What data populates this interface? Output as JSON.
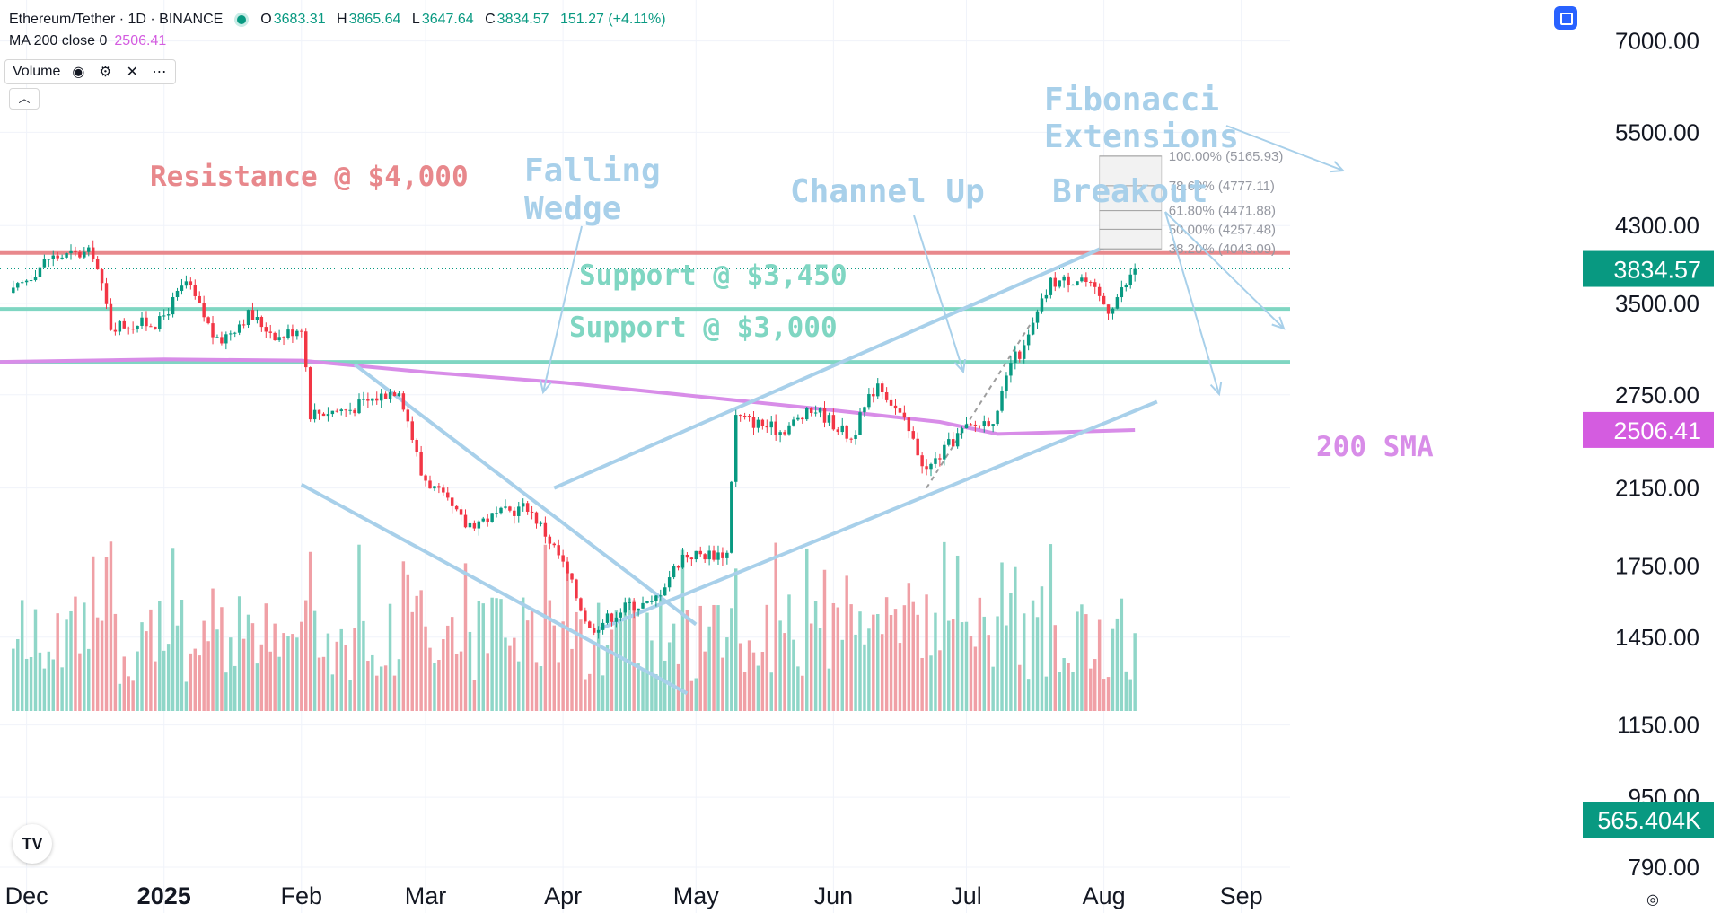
{
  "header": {
    "symbol": "Ethereum/Tether · 1D · BINANCE",
    "ohlc": {
      "o_label": "O",
      "o": "3683.31",
      "h_label": "H",
      "h": "3865.64",
      "l_label": "L",
      "l": "3647.64",
      "c_label": "C",
      "c": "3834.57",
      "change": "151.27 (+4.11%)"
    },
    "ma_label": "MA 200 close 0",
    "ma_value": "2506.41",
    "volume_label": "Volume",
    "icons": [
      "eye-icon",
      "gear-icon",
      "close-icon",
      "more-icon"
    ]
  },
  "colors": {
    "up": "#089981",
    "down": "#f23645",
    "vol_up": "#8fd6c8",
    "vol_down": "#f0a0a6",
    "resistance": "#e8888c",
    "support": "#7fd6c2",
    "trend": "#a8d0ea",
    "sma": "#d88de8",
    "annotation": "#a8d0ea",
    "fib_text": "#9598a1",
    "price_badge": "#089981",
    "sma_badge": "#d45ce0"
  },
  "chart_data": {
    "type": "candlestick",
    "title": "Ethereum/Tether · 1D · BINANCE",
    "y_scale": "log",
    "ylim": [
      700,
      7800
    ],
    "y_ticks": [
      "7000.00",
      "5500.00",
      "4300.00",
      "3500.00",
      "2750.00",
      "2150.00",
      "1750.00",
      "1450.00",
      "1150.00",
      "950.00",
      "790.00"
    ],
    "x_ticks": [
      "Dec",
      "2025",
      "Feb",
      "Mar",
      "Apr",
      "May",
      "Jun",
      "Jul",
      "Aug",
      "Sep"
    ],
    "x_range": [
      "2024-11-25",
      "2025-09-12"
    ],
    "price_path": [
      [
        "2024-11-28",
        3600
      ],
      [
        "2024-12-06",
        3950
      ],
      [
        "2024-12-16",
        4000
      ],
      [
        "2024-12-20",
        3300
      ],
      [
        "2024-12-31",
        3330
      ],
      [
        "2025-01-06",
        3700
      ],
      [
        "2025-01-13",
        3150
      ],
      [
        "2025-01-20",
        3400
      ],
      [
        "2025-01-27",
        3200
      ],
      [
        "2025-02-01",
        3300
      ],
      [
        "2025-02-03",
        2620
      ],
      [
        "2025-02-12",
        2650
      ],
      [
        "2025-02-23",
        2800
      ],
      [
        "2025-02-28",
        2230
      ],
      [
        "2025-03-10",
        1950
      ],
      [
        "2025-03-24",
        2050
      ],
      [
        "2025-03-31",
        1800
      ],
      [
        "2025-04-07",
        1480
      ],
      [
        "2025-04-16",
        1580
      ],
      [
        "2025-04-21",
        1580
      ],
      [
        "2025-04-28",
        1800
      ],
      [
        "2025-05-08",
        1810
      ],
      [
        "2025-05-10",
        2600
      ],
      [
        "2025-05-20",
        2500
      ],
      [
        "2025-05-28",
        2650
      ],
      [
        "2025-06-05",
        2450
      ],
      [
        "2025-06-11",
        2850
      ],
      [
        "2025-06-17",
        2550
      ],
      [
        "2025-06-22",
        2250
      ],
      [
        "2025-06-30",
        2500
      ],
      [
        "2025-07-08",
        2600
      ],
      [
        "2025-07-11",
        3000
      ],
      [
        "2025-07-14",
        3100
      ],
      [
        "2025-07-20",
        3700
      ],
      [
        "2025-07-27",
        3750
      ],
      [
        "2025-08-02",
        3450
      ],
      [
        "2025-08-06",
        3680
      ],
      [
        "2025-08-08",
        3834.57
      ]
    ],
    "volume_note": "volume bars colored by candle direction at chart bottom",
    "last_volume": "565.404K",
    "annotations": {
      "resistance": {
        "label": "Resistance @ $4,000",
        "price": 4000
      },
      "support1": {
        "label": "Support @ $3,450",
        "price": 3450
      },
      "support2": {
        "label": "Support @ $3,000",
        "price": 3000
      },
      "falling_wedge": "Falling Wedge",
      "channel_up": "Channel Up",
      "breakout": "Breakout",
      "fibonacci": [
        "Fibonacci",
        "Extensions"
      ],
      "sma_label": "200 SMA"
    },
    "fib_levels": [
      {
        "label": "100.00% (5165.93)",
        "price": 5165.93
      },
      {
        "label": "78.60% (4777.11)",
        "price": 4777.11
      },
      {
        "label": "61.80% (4471.88)",
        "price": 4471.88
      },
      {
        "label": "50.00% (4257.48)",
        "price": 4257.48
      },
      {
        "label": "38.20% (4043.09)",
        "price": 4043.09
      }
    ],
    "price_badge": {
      "value": "3834.57",
      "price": 3834.57
    },
    "sma_badge": {
      "value": "2506.41",
      "price": 2506.41
    },
    "volume_badge": "565.404K"
  }
}
